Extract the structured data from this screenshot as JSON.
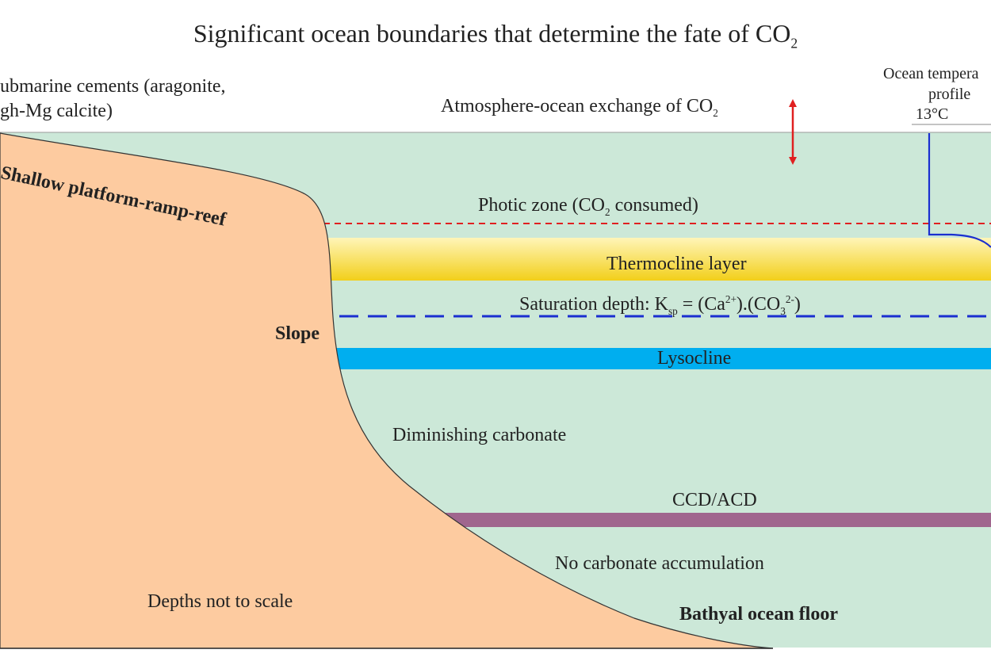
{
  "title": {
    "main": "Significant ocean boundaries that determine the fate of CO",
    "sub": "2"
  },
  "top_left_label": {
    "line1": "ubmarine cements (aragonite,",
    "line2": "gh-Mg calcite)"
  },
  "atmosphere_label": {
    "main": "Atmosphere-ocean exchange of CO",
    "sub": "2"
  },
  "temperature_profile": {
    "line1": "Ocean tempera",
    "line2": "profile",
    "value": "13°C"
  },
  "platform_label": "Shallow platform-ramp-reef",
  "photic_zone": {
    "a": "Photic zone (CO",
    "sub": "2",
    "b": " consumed)"
  },
  "thermocline": "Thermocline layer",
  "saturation_depth": {
    "a": "Saturation depth: K",
    "ksub": "sp",
    "b": " = (Ca",
    "casup": "2+",
    "c": ").(CO",
    "csub": "3",
    "csup": "2-",
    "d": ")"
  },
  "slope_label": "Slope",
  "lysocline": "Lysocline",
  "diminishing": "Diminishing carbonate",
  "ccd": "CCD/ACD",
  "no_accumulation": "No carbonate accumulation",
  "depths_note": "Depths not to scale",
  "bathyal": "Bathyal ocean floor",
  "colors": {
    "ocean": "#cce8d8",
    "land": "#fdcba0",
    "thermocline_top": "#fff5b8",
    "thermocline_bottom": "#f2cf1a",
    "lysocline": "#00aeef",
    "ccd": "#a0668e",
    "photic_line": "#e02020",
    "saturation_line": "#1a2fd0",
    "arrow": "#e02020",
    "temperature_line": "#1a2fd0"
  }
}
